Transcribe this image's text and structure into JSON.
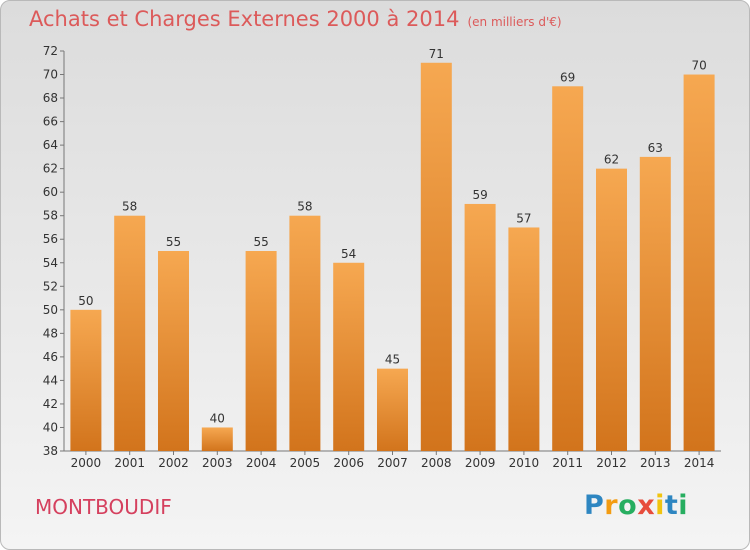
{
  "header": {
    "title": "Achats et Charges Externes 2000 à 2014",
    "subtitle": "(en milliers d'€)"
  },
  "footer": {
    "commune": "MONTBOUDIF",
    "logo_letters": [
      {
        "ch": "P",
        "color": "#2e86c1"
      },
      {
        "ch": "r",
        "color": "#f39c12"
      },
      {
        "ch": "o",
        "color": "#27ae60"
      },
      {
        "ch": "x",
        "color": "#e74c3c"
      },
      {
        "ch": "i",
        "color": "#f1c40f"
      },
      {
        "ch": "t",
        "color": "#2e86c1"
      },
      {
        "ch": "i",
        "color": "#27ae60"
      }
    ]
  },
  "chart_data": {
    "type": "bar",
    "categories": [
      "2000",
      "2001",
      "2002",
      "2003",
      "2004",
      "2005",
      "2006",
      "2007",
      "2008",
      "2009",
      "2010",
      "2011",
      "2012",
      "2013",
      "2014"
    ],
    "values": [
      50,
      58,
      55,
      40,
      55,
      58,
      54,
      45,
      71,
      59,
      57,
      69,
      62,
      63,
      70
    ],
    "ylim": [
      38,
      72
    ],
    "yticks": [
      38,
      40,
      42,
      44,
      46,
      48,
      50,
      52,
      54,
      56,
      58,
      60,
      62,
      64,
      66,
      68,
      70,
      72
    ],
    "grid": false,
    "bar_color": "#f0913a"
  }
}
